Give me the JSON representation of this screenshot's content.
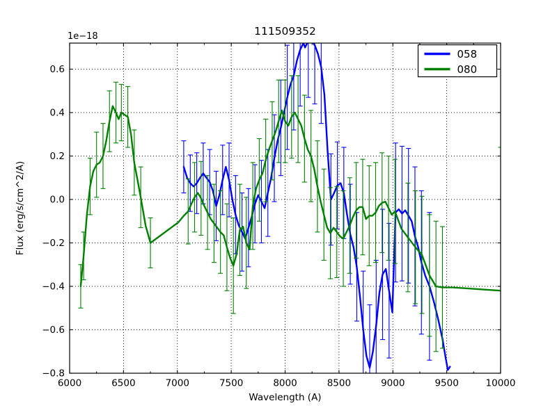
{
  "chart_data": {
    "type": "line",
    "title": "111509352",
    "xlabel": "Wavelength (A)",
    "ylabel": "Flux (erg/s/cm^2/A)",
    "offset_text": "1e−18",
    "xlim": [
      6000,
      10000
    ],
    "ylim": [
      -0.8,
      0.72
    ],
    "grid": true,
    "xticks": [
      6000,
      6500,
      7000,
      7500,
      8000,
      8500,
      9000,
      9500,
      10000
    ],
    "xtick_labels": [
      "6000",
      "6500",
      "7000",
      "7500",
      "8000",
      "8500",
      "9000",
      "9500",
      "10000"
    ],
    "xminorticks": [
      6250,
      6750,
      7250,
      7750,
      8250,
      8750,
      9250,
      9750
    ],
    "yticks": [
      0.6,
      0.4,
      0.2,
      0.0,
      -0.2,
      -0.4,
      -0.6,
      -0.8
    ],
    "ytick_labels": [
      "0.6",
      "0.4",
      "0.2",
      "0.0",
      "−0.2",
      "−0.4",
      "−0.6",
      "−0.8"
    ],
    "legend": {
      "position": "upper right",
      "entries": [
        {
          "label": "058",
          "color": "#0000ff"
        },
        {
          "label": "080",
          "color": "#008000"
        }
      ]
    },
    "series": [
      {
        "name": "058",
        "color": "#0000ff",
        "x": [
          7059,
          7090,
          7120,
          7150,
          7180,
          7210,
          7240,
          7270,
          7300,
          7330,
          7360,
          7390,
          7420,
          7450,
          7480,
          7510,
          7540,
          7570,
          7600,
          7630,
          7660,
          7690,
          7720,
          7750,
          7780,
          7810,
          7840,
          7870,
          7900,
          7930,
          7960,
          7990,
          8020,
          8050,
          8080,
          8110,
          8140,
          8170,
          8185,
          8215,
          8245,
          8275,
          8305,
          8335,
          8365,
          8395,
          8425,
          8455,
          8485,
          8515,
          8545,
          8575,
          8605,
          8635,
          8665,
          8695,
          8725,
          8755,
          8785,
          8815,
          8845,
          8875,
          8905,
          8935,
          8965,
          8995,
          9025,
          9055,
          9085,
          9115,
          9145,
          9175,
          9205,
          9235,
          9265,
          9300,
          9340,
          9380,
          9420,
          9460,
          9490,
          9510,
          9530
        ],
        "y": [
          0.15,
          0.1,
          0.075,
          0.06,
          0.075,
          0.1,
          0.12,
          0.1,
          0.08,
          0.04,
          -0.03,
          0.02,
          0.09,
          0.15,
          0.09,
          0.0,
          -0.07,
          -0.12,
          -0.15,
          -0.18,
          -0.13,
          -0.08,
          -0.02,
          0.02,
          -0.01,
          -0.04,
          0.03,
          0.1,
          0.19,
          0.27,
          0.33,
          0.4,
          0.47,
          0.53,
          0.57,
          0.64,
          0.69,
          0.72,
          0.7,
          0.73,
          0.73,
          0.71,
          0.67,
          0.61,
          0.48,
          0.22,
          0.0,
          0.03,
          0.065,
          0.075,
          0.03,
          -0.07,
          -0.16,
          -0.22,
          -0.31,
          -0.45,
          -0.6,
          -0.72,
          -0.775,
          -0.7,
          -0.58,
          -0.43,
          -0.345,
          -0.32,
          -0.42,
          -0.52,
          -0.06,
          -0.045,
          -0.065,
          -0.05,
          -0.075,
          -0.1,
          -0.17,
          -0.22,
          -0.29,
          -0.35,
          -0.4,
          -0.47,
          -0.55,
          -0.64,
          -0.73,
          -0.785,
          -0.77
        ],
        "yerr": [
          0.12,
          null,
          0.13,
          null,
          0.14,
          null,
          0.14,
          null,
          0.15,
          null,
          0.16,
          null,
          0.16,
          null,
          0.17,
          null,
          0.18,
          null,
          0.18,
          null,
          0.18,
          null,
          0.18,
          null,
          0.19,
          null,
          0.2,
          null,
          0.2,
          null,
          0.22,
          null,
          0.24,
          null,
          0.25,
          null,
          0.26,
          null,
          null,
          0.26,
          null,
          0.27,
          null,
          0.26,
          null,
          null,
          0.21,
          null,
          0.2,
          null,
          0.21,
          null,
          0.23,
          null,
          0.25,
          null,
          0.27,
          null,
          0.29,
          null,
          0.3,
          null,
          0.3,
          null,
          0.31,
          null,
          0.32,
          null,
          0.31,
          null,
          0.31,
          null,
          0.32,
          null,
          0.33,
          null,
          0.34,
          null,
          null,
          null,
          null,
          null,
          null
        ]
      },
      {
        "name": "080",
        "color": "#008000",
        "x": [
          6103,
          6130,
          6160,
          6190,
          6220,
          6250,
          6280,
          6310,
          6340,
          6370,
          6400,
          6430,
          6455,
          6480,
          6510,
          6540,
          6570,
          6600,
          6630,
          6660,
          6705,
          6750,
          7010,
          7060,
          7100,
          7130,
          7160,
          7190,
          7220,
          7250,
          7280,
          7310,
          7340,
          7370,
          7400,
          7430,
          7460,
          7490,
          7520,
          7550,
          7580,
          7610,
          7640,
          7670,
          7700,
          7730,
          7760,
          7790,
          7820,
          7850,
          7880,
          7910,
          7940,
          7970,
          8000,
          8030,
          8060,
          8090,
          8120,
          8150,
          8180,
          8210,
          8240,
          8270,
          8300,
          8330,
          8360,
          8390,
          8420,
          8450,
          8480,
          8510,
          8540,
          8570,
          8600,
          8630,
          8660,
          8690,
          8720,
          8750,
          8780,
          8810,
          8840,
          8870,
          8900,
          8930,
          8960,
          8990,
          9020,
          9080,
          9140,
          9210,
          9270,
          9340,
          9400,
          9460,
          9550,
          9700,
          9850,
          10000
        ],
        "y": [
          -0.4,
          -0.26,
          -0.07,
          0.06,
          0.13,
          0.16,
          0.17,
          0.2,
          0.27,
          0.36,
          0.43,
          0.4,
          0.37,
          0.4,
          0.39,
          0.38,
          0.3,
          0.17,
          0.09,
          0.01,
          -0.12,
          -0.2,
          -0.105,
          -0.075,
          -0.055,
          -0.02,
          0.01,
          0.03,
          0.005,
          -0.03,
          -0.06,
          -0.09,
          -0.11,
          -0.13,
          -0.15,
          -0.165,
          -0.22,
          -0.27,
          -0.305,
          -0.25,
          -0.14,
          -0.125,
          -0.2,
          -0.23,
          -0.03,
          0.05,
          0.09,
          0.12,
          0.18,
          0.23,
          0.27,
          0.31,
          0.36,
          0.41,
          0.36,
          0.34,
          0.38,
          0.4,
          0.37,
          0.34,
          0.28,
          0.23,
          0.2,
          0.14,
          0.06,
          -0.01,
          -0.07,
          -0.13,
          -0.155,
          -0.13,
          -0.15,
          -0.17,
          -0.18,
          -0.15,
          -0.12,
          -0.08,
          -0.05,
          -0.035,
          -0.035,
          -0.09,
          -0.075,
          -0.075,
          -0.06,
          -0.03,
          -0.015,
          -0.01,
          -0.04,
          -0.07,
          -0.055,
          -0.135,
          -0.175,
          -0.22,
          -0.255,
          -0.35,
          -0.4,
          -0.405,
          -0.405,
          -0.41,
          -0.415,
          -0.42
        ],
        "yerr": [
          0.1,
          0.11,
          null,
          0.13,
          null,
          0.15,
          null,
          0.15,
          null,
          0.14,
          null,
          0.14,
          null,
          0.13,
          null,
          0.14,
          null,
          0.15,
          null,
          0.14,
          null,
          0.115,
          null,
          null,
          0.15,
          null,
          0.16,
          null,
          0.17,
          null,
          0.17,
          null,
          0.18,
          null,
          0.19,
          null,
          0.2,
          null,
          0.22,
          null,
          0.21,
          null,
          0.21,
          null,
          0.2,
          null,
          0.19,
          null,
          0.19,
          null,
          0.18,
          null,
          0.19,
          null,
          0.19,
          null,
          0.19,
          null,
          0.2,
          null,
          0.2,
          null,
          0.21,
          null,
          0.21,
          null,
          0.21,
          null,
          0.21,
          null,
          0.21,
          null,
          0.22,
          null,
          0.22,
          null,
          0.22,
          null,
          0.22,
          null,
          0.23,
          null,
          0.23,
          null,
          0.23,
          null,
          0.24,
          null,
          0.24,
          null,
          0.25,
          0.26,
          0.27,
          0.28,
          0.3,
          0.28,
          null,
          null,
          null,
          0.66
        ]
      }
    ]
  }
}
